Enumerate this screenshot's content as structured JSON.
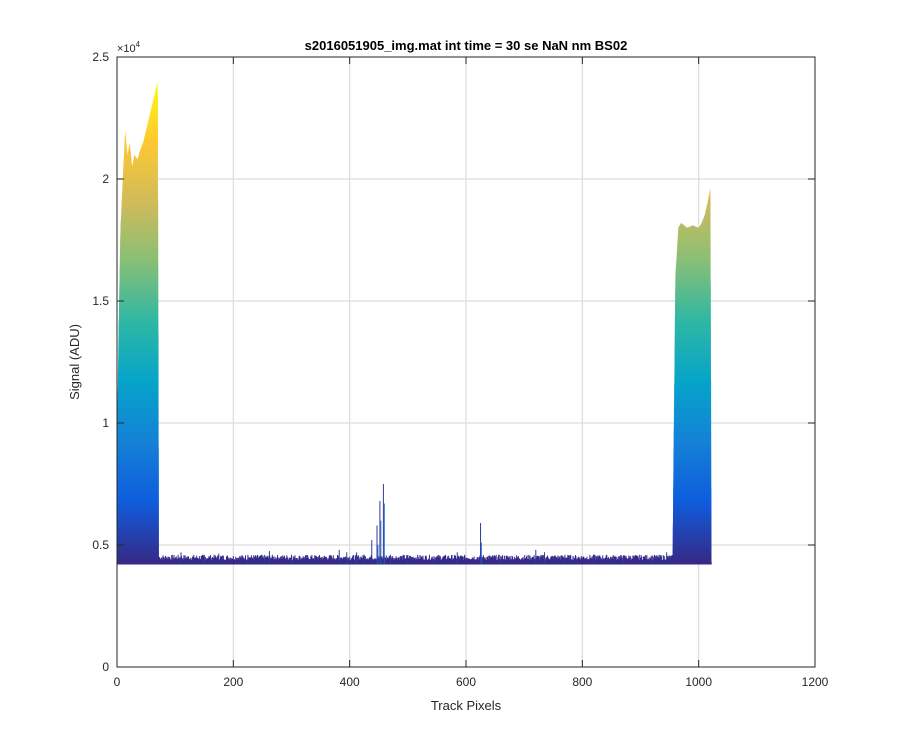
{
  "chart_data": {
    "type": "area",
    "title": "s2016051905_img.mat int time = 30 se  NaN nm BS02",
    "xlabel": "Track Pixels",
    "ylabel": "Signal (ADU)",
    "xlim": [
      0,
      1200
    ],
    "ylim": [
      0,
      25000
    ],
    "y_exponent_label": "×10",
    "y_exponent_power": "4",
    "xticks": [
      0,
      200,
      400,
      600,
      800,
      1000,
      1200
    ],
    "xtick_labels": [
      "0",
      "200",
      "400",
      "600",
      "800",
      "1000",
      "1200"
    ],
    "yticks": [
      0,
      5000,
      10000,
      15000,
      20000,
      25000
    ],
    "ytick_labels": [
      "0",
      "0.5",
      "1",
      "1.5",
      "2",
      "2.5"
    ],
    "grid": true,
    "colormap": [
      "#352a87",
      "#0f5cdd",
      "#1481d6",
      "#06a4ca",
      "#2eb7a4",
      "#87bf77",
      "#d1bb59",
      "#fec832",
      "#f9fb0e"
    ],
    "baseline": 4300,
    "baseline_floor": 4200,
    "left_band": {
      "x": [
        0,
        3,
        6,
        10,
        14,
        18,
        22,
        26,
        30,
        35,
        40,
        45,
        50,
        55,
        60,
        65,
        70,
        72
      ],
      "upper": [
        9000,
        14000,
        18000,
        20000,
        22000,
        21000,
        21500,
        20500,
        21000,
        20800,
        21200,
        21500,
        22000,
        22500,
        23000,
        23500,
        24000,
        4400
      ]
    },
    "right_band": {
      "x": [
        955,
        960,
        965,
        970,
        980,
        990,
        1000,
        1005,
        1010,
        1015,
        1020,
        1022
      ],
      "upper": [
        4300,
        16000,
        18000,
        18200,
        18000,
        18100,
        18000,
        18200,
        18500,
        19000,
        19600,
        4300
      ]
    },
    "spikes": [
      {
        "x": 110,
        "y": 4700
      },
      {
        "x": 150,
        "y": 4600
      },
      {
        "x": 175,
        "y": 4650
      },
      {
        "x": 225,
        "y": 4600
      },
      {
        "x": 262,
        "y": 4750
      },
      {
        "x": 300,
        "y": 4600
      },
      {
        "x": 340,
        "y": 4550
      },
      {
        "x": 382,
        "y": 4800
      },
      {
        "x": 395,
        "y": 4700
      },
      {
        "x": 412,
        "y": 4700
      },
      {
        "x": 425,
        "y": 4600
      },
      {
        "x": 438,
        "y": 5200
      },
      {
        "x": 447,
        "y": 5800
      },
      {
        "x": 452,
        "y": 6800
      },
      {
        "x": 458,
        "y": 7500
      },
      {
        "x": 470,
        "y": 4600
      },
      {
        "x": 500,
        "y": 4600
      },
      {
        "x": 545,
        "y": 4550
      },
      {
        "x": 585,
        "y": 4700
      },
      {
        "x": 625,
        "y": 5900
      },
      {
        "x": 660,
        "y": 4550
      },
      {
        "x": 720,
        "y": 4800
      },
      {
        "x": 735,
        "y": 4700
      },
      {
        "x": 770,
        "y": 4600
      },
      {
        "x": 820,
        "y": 4600
      },
      {
        "x": 870,
        "y": 4550
      },
      {
        "x": 920,
        "y": 4550
      },
      {
        "x": 945,
        "y": 4700
      }
    ]
  }
}
